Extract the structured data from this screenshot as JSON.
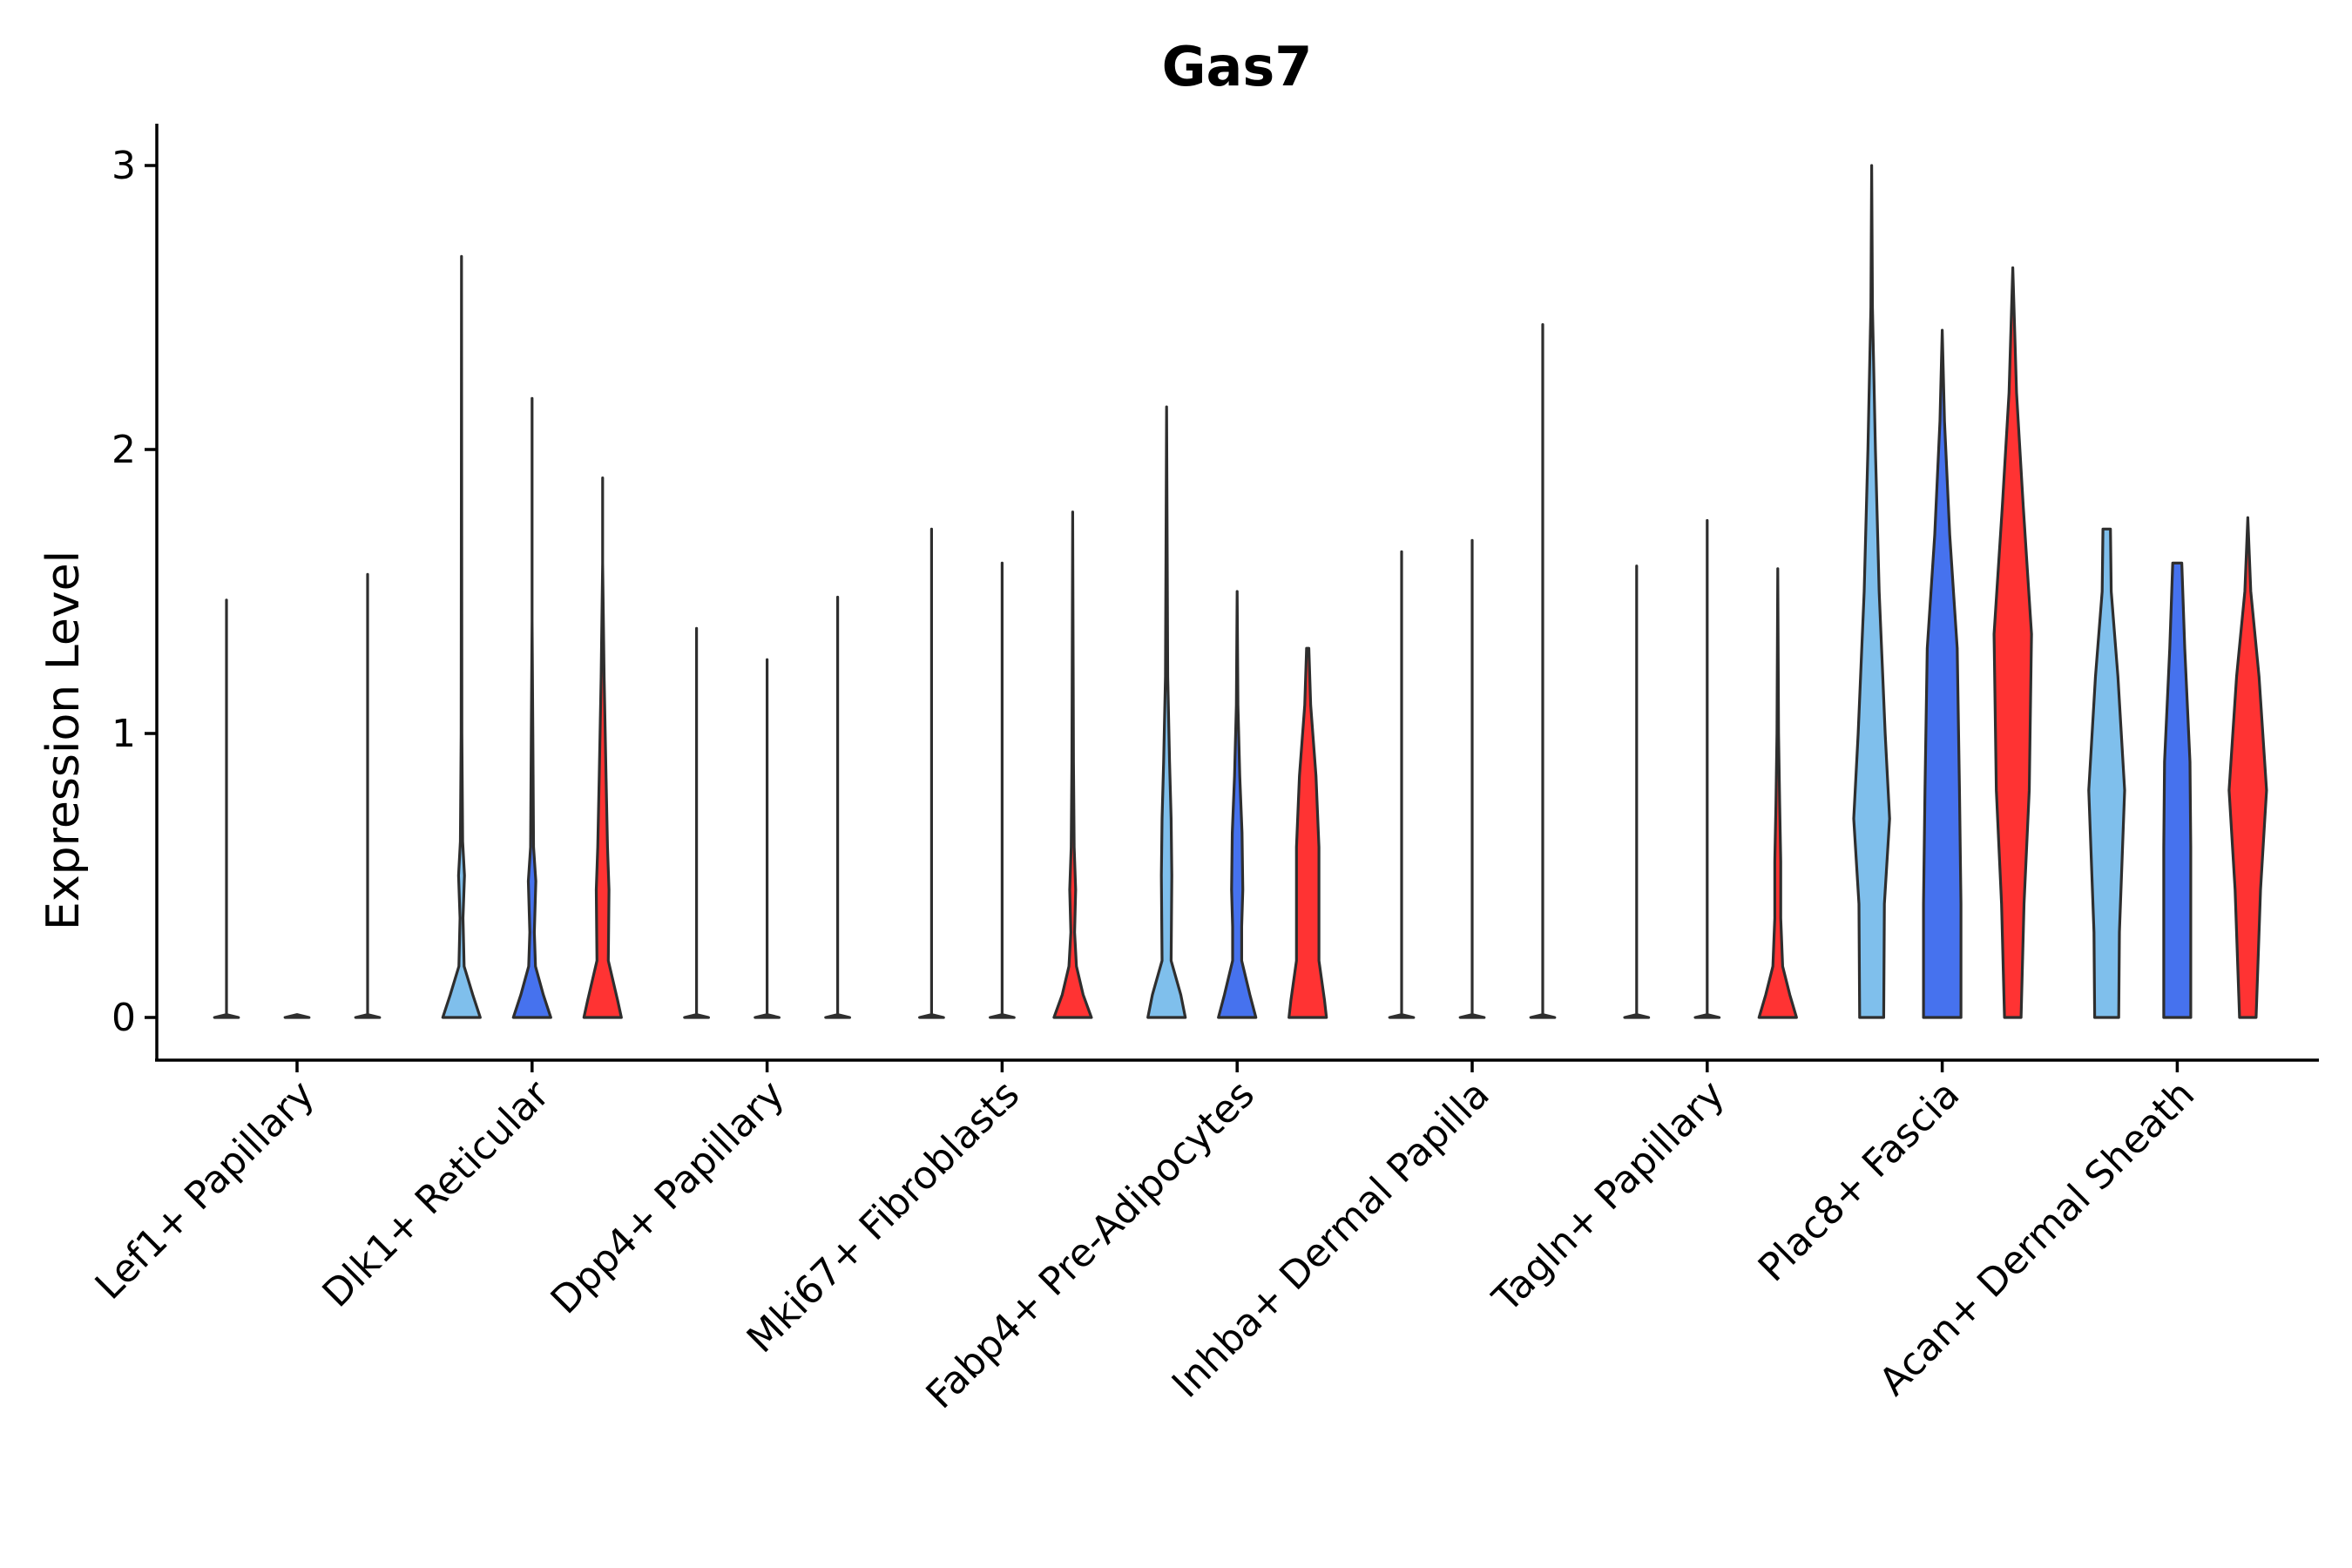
{
  "chart_data": {
    "type": "violin",
    "title": "Gas7",
    "xlabel": "",
    "ylabel": "Expression Level",
    "ylim": [
      -0.15,
      3.15
    ],
    "yticks": [
      0,
      1,
      2,
      3
    ],
    "ytick_labels": [
      "0",
      "1",
      "2",
      "3"
    ],
    "categories": [
      "Lef1+ Papillary",
      "Dlk1+ Reticular",
      "Dpp4+ Papillary",
      "Mki67+ Fibroblasts",
      "Fabp4+ Pre-Adipocytes",
      "Inhba+ Dermal Papilla",
      "Tagln+ Papillary",
      "Plac8+ Fascia",
      "Acan+ Dermal Sheath"
    ],
    "groups": [
      {
        "name": "group 1",
        "color": "#7fbfec"
      },
      {
        "name": "group 2",
        "color": "#4672ee"
      },
      {
        "name": "group 3",
        "color": "#ff3333"
      }
    ],
    "legend": "none",
    "grid": false,
    "violins": [
      {
        "category": 0,
        "group": 0,
        "max": 1.47,
        "profile": [
          [
            0,
            0.32
          ],
          [
            0.01,
            0.0
          ],
          [
            1.47,
            0.0
          ]
        ]
      },
      {
        "category": 0,
        "group": 1,
        "max": 0.0,
        "profile": [
          [
            0,
            0.32
          ],
          [
            0.01,
            0.0
          ]
        ]
      },
      {
        "category": 0,
        "group": 2,
        "max": 1.56,
        "profile": [
          [
            0,
            0.32
          ],
          [
            0.01,
            0.0
          ],
          [
            1.56,
            0.0
          ]
        ]
      },
      {
        "category": 1,
        "group": 0,
        "max": 2.68,
        "profile": [
          [
            0,
            0.5
          ],
          [
            0.08,
            0.3
          ],
          [
            0.18,
            0.07
          ],
          [
            0.35,
            0.04
          ],
          [
            0.5,
            0.08
          ],
          [
            0.62,
            0.03
          ],
          [
            1.0,
            0.01
          ],
          [
            2.68,
            0.0
          ]
        ]
      },
      {
        "category": 1,
        "group": 1,
        "max": 2.18,
        "profile": [
          [
            0,
            0.5
          ],
          [
            0.08,
            0.3
          ],
          [
            0.18,
            0.09
          ],
          [
            0.3,
            0.06
          ],
          [
            0.48,
            0.1
          ],
          [
            0.6,
            0.04
          ],
          [
            1.0,
            0.02
          ],
          [
            1.4,
            0.0
          ],
          [
            2.18,
            0.0
          ]
        ]
      },
      {
        "category": 1,
        "group": 2,
        "max": 1.9,
        "profile": [
          [
            0,
            0.5
          ],
          [
            0.06,
            0.4
          ],
          [
            0.2,
            0.15
          ],
          [
            0.32,
            0.16
          ],
          [
            0.45,
            0.17
          ],
          [
            0.6,
            0.13
          ],
          [
            0.85,
            0.09
          ],
          [
            1.2,
            0.04
          ],
          [
            1.6,
            0.0
          ],
          [
            1.9,
            0.0
          ]
        ]
      },
      {
        "category": 2,
        "group": 0,
        "max": 1.37,
        "profile": [
          [
            0,
            0.32
          ],
          [
            0.01,
            0.0
          ],
          [
            1.37,
            0.0
          ]
        ]
      },
      {
        "category": 2,
        "group": 1,
        "max": 1.26,
        "profile": [
          [
            0,
            0.32
          ],
          [
            0.01,
            0.0
          ],
          [
            1.26,
            0.0
          ]
        ]
      },
      {
        "category": 2,
        "group": 2,
        "max": 1.48,
        "profile": [
          [
            0,
            0.32
          ],
          [
            0.01,
            0.0
          ],
          [
            1.48,
            0.0
          ]
        ]
      },
      {
        "category": 3,
        "group": 0,
        "max": 1.72,
        "profile": [
          [
            0,
            0.32
          ],
          [
            0.01,
            0.0
          ],
          [
            1.72,
            0.0
          ]
        ]
      },
      {
        "category": 3,
        "group": 1,
        "max": 1.6,
        "profile": [
          [
            0,
            0.32
          ],
          [
            0.01,
            0.0
          ],
          [
            1.6,
            0.0
          ]
        ]
      },
      {
        "category": 3,
        "group": 2,
        "max": 1.78,
        "profile": [
          [
            0,
            0.5
          ],
          [
            0.08,
            0.28
          ],
          [
            0.18,
            0.1
          ],
          [
            0.3,
            0.05
          ],
          [
            0.45,
            0.08
          ],
          [
            0.6,
            0.04
          ],
          [
            0.9,
            0.02
          ],
          [
            1.78,
            0.0
          ]
        ]
      },
      {
        "category": 4,
        "group": 0,
        "max": 2.15,
        "profile": [
          [
            0,
            0.5
          ],
          [
            0.08,
            0.38
          ],
          [
            0.2,
            0.12
          ],
          [
            0.35,
            0.13
          ],
          [
            0.5,
            0.14
          ],
          [
            0.7,
            0.12
          ],
          [
            0.9,
            0.08
          ],
          [
            1.2,
            0.03
          ],
          [
            2.15,
            0.0
          ]
        ]
      },
      {
        "category": 4,
        "group": 1,
        "max": 1.5,
        "profile": [
          [
            0,
            0.5
          ],
          [
            0.08,
            0.34
          ],
          [
            0.2,
            0.12
          ],
          [
            0.32,
            0.12
          ],
          [
            0.45,
            0.15
          ],
          [
            0.65,
            0.13
          ],
          [
            0.85,
            0.07
          ],
          [
            1.1,
            0.02
          ],
          [
            1.5,
            0.0
          ]
        ]
      },
      {
        "category": 4,
        "group": 2,
        "max": 1.3,
        "profile": [
          [
            0,
            0.5
          ],
          [
            0.06,
            0.45
          ],
          [
            0.2,
            0.3
          ],
          [
            0.35,
            0.3
          ],
          [
            0.6,
            0.3
          ],
          [
            0.85,
            0.22
          ],
          [
            1.1,
            0.08
          ],
          [
            1.3,
            0.03
          ]
        ]
      },
      {
        "category": 5,
        "group": 0,
        "max": 1.64,
        "profile": [
          [
            0,
            0.32
          ],
          [
            0.01,
            0.0
          ],
          [
            1.64,
            0.0
          ]
        ]
      },
      {
        "category": 5,
        "group": 1,
        "max": 1.68,
        "profile": [
          [
            0,
            0.32
          ],
          [
            0.01,
            0.0
          ],
          [
            1.68,
            0.0
          ]
        ]
      },
      {
        "category": 5,
        "group": 2,
        "max": 2.44,
        "profile": [
          [
            0,
            0.32
          ],
          [
            0.01,
            0.0
          ],
          [
            2.44,
            0.0
          ]
        ]
      },
      {
        "category": 6,
        "group": 0,
        "max": 1.59,
        "profile": [
          [
            0,
            0.32
          ],
          [
            0.01,
            0.0
          ],
          [
            1.59,
            0.0
          ]
        ]
      },
      {
        "category": 6,
        "group": 1,
        "max": 1.75,
        "profile": [
          [
            0,
            0.32
          ],
          [
            0.01,
            0.0
          ],
          [
            1.75,
            0.0
          ]
        ]
      },
      {
        "category": 6,
        "group": 2,
        "max": 1.58,
        "profile": [
          [
            0,
            0.5
          ],
          [
            0.08,
            0.32
          ],
          [
            0.18,
            0.13
          ],
          [
            0.35,
            0.08
          ],
          [
            0.55,
            0.08
          ],
          [
            0.75,
            0.05
          ],
          [
            1.0,
            0.02
          ],
          [
            1.58,
            0.0
          ]
        ]
      },
      {
        "category": 7,
        "group": 0,
        "max": 3.0,
        "profile": [
          [
            0,
            0.32
          ],
          [
            0.4,
            0.34
          ],
          [
            0.7,
            0.48
          ],
          [
            1.0,
            0.36
          ],
          [
            1.5,
            0.2
          ],
          [
            2.0,
            0.1
          ],
          [
            2.5,
            0.02
          ],
          [
            3.0,
            0.0
          ]
        ]
      },
      {
        "category": 7,
        "group": 1,
        "max": 2.42,
        "profile": [
          [
            0,
            0.5
          ],
          [
            0.4,
            0.5
          ],
          [
            0.8,
            0.46
          ],
          [
            1.3,
            0.4
          ],
          [
            1.7,
            0.2
          ],
          [
            2.1,
            0.06
          ],
          [
            2.42,
            0.0
          ]
        ]
      },
      {
        "category": 7,
        "group": 2,
        "max": 2.64,
        "profile": [
          [
            0,
            0.22
          ],
          [
            0.4,
            0.3
          ],
          [
            0.8,
            0.44
          ],
          [
            1.35,
            0.5
          ],
          [
            1.8,
            0.28
          ],
          [
            2.2,
            0.1
          ],
          [
            2.64,
            0.0
          ]
        ]
      },
      {
        "category": 8,
        "group": 0,
        "max": 1.72,
        "profile": [
          [
            0,
            0.32
          ],
          [
            0.3,
            0.34
          ],
          [
            0.8,
            0.48
          ],
          [
            1.2,
            0.3
          ],
          [
            1.5,
            0.12
          ],
          [
            1.72,
            0.1
          ]
        ]
      },
      {
        "category": 8,
        "group": 1,
        "max": 1.6,
        "profile": [
          [
            0,
            0.36
          ],
          [
            0.6,
            0.36
          ],
          [
            0.9,
            0.34
          ],
          [
            1.3,
            0.2
          ],
          [
            1.6,
            0.12
          ]
        ]
      },
      {
        "category": 8,
        "group": 2,
        "max": 1.76,
        "profile": [
          [
            0,
            0.22
          ],
          [
            0.45,
            0.34
          ],
          [
            0.8,
            0.5
          ],
          [
            1.2,
            0.3
          ],
          [
            1.5,
            0.08
          ],
          [
            1.76,
            0.0
          ]
        ]
      }
    ]
  }
}
